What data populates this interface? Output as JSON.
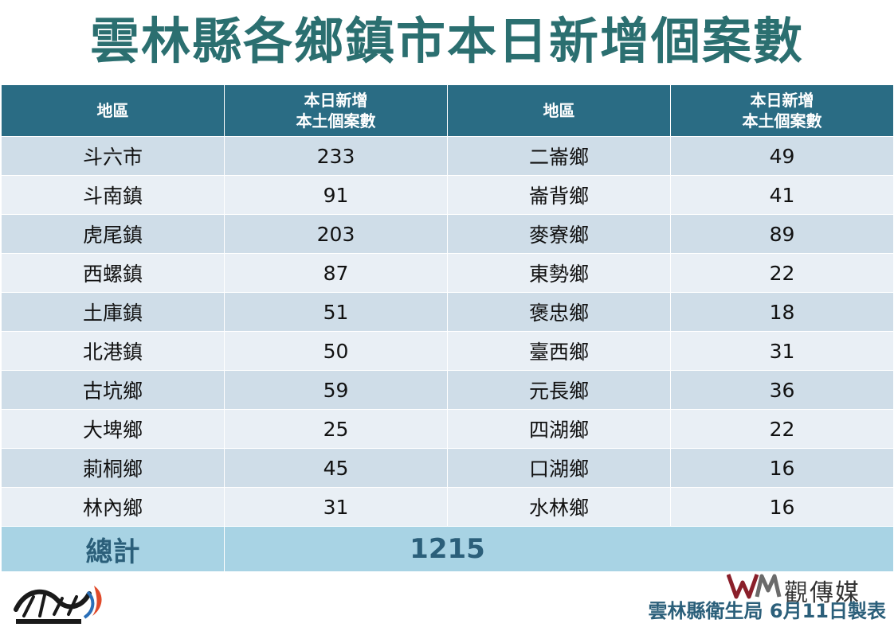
{
  "title": "雲林縣各鄉鎮市本日新增個案數",
  "table": {
    "headers": [
      "地區",
      "本日新增\n本土個案數",
      "地區",
      "本日新增\n本土個案數"
    ],
    "rows": [
      [
        "斗六市",
        "233",
        "二崙鄉",
        "49"
      ],
      [
        "斗南鎮",
        "91",
        "崙背鄉",
        "41"
      ],
      [
        "虎尾鎮",
        "203",
        "麥寮鄉",
        "89"
      ],
      [
        "西螺鎮",
        "87",
        "東勢鄉",
        "22"
      ],
      [
        "土庫鎮",
        "51",
        "褒忠鄉",
        "18"
      ],
      [
        "北港鎮",
        "50",
        "臺西鄉",
        "31"
      ],
      [
        "古坑鄉",
        "59",
        "元長鄉",
        "36"
      ],
      [
        "大埤鄉",
        "25",
        "四湖鄉",
        "22"
      ],
      [
        "莿桐鄉",
        "45",
        "口湖鄉",
        "16"
      ],
      [
        "林內鄉",
        "31",
        "水林鄉",
        "16"
      ]
    ],
    "total_label": "總計",
    "total_value": "1215"
  },
  "footer": {
    "org": "雲林縣衛生局  6月11日製表",
    "brand_right": "觀傳媒"
  },
  "colors": {
    "title": "#2b6f70",
    "header_bg": "#2a6c84",
    "row_odd": "#cfdde8",
    "row_even": "#e9eff5",
    "total_bg": "#a8d3e4"
  }
}
